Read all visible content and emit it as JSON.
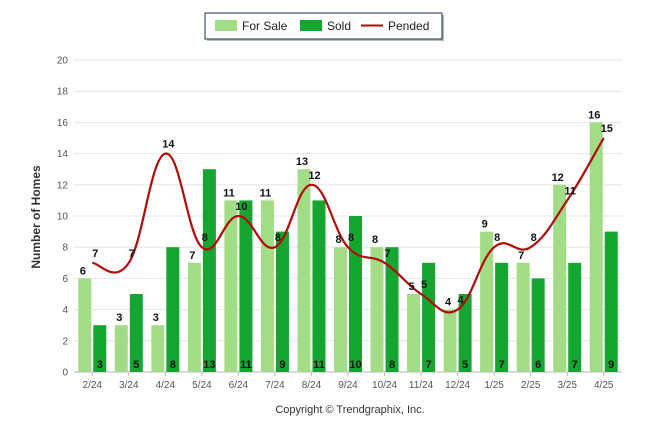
{
  "chart_data": {
    "type": "bar",
    "categories": [
      "2/24",
      "3/24",
      "4/24",
      "5/24",
      "6/24",
      "7/24",
      "8/24",
      "9/24",
      "10/24",
      "11/24",
      "12/24",
      "1/25",
      "2/25",
      "3/25",
      "4/25"
    ],
    "series": [
      {
        "name": "For Sale",
        "type": "bar",
        "color": "#a3dc87",
        "values": [
          6,
          3,
          3,
          7,
          11,
          11,
          13,
          8,
          8,
          5,
          4,
          9,
          7,
          12,
          16
        ]
      },
      {
        "name": "Sold",
        "type": "bar",
        "color": "#14a631",
        "values": [
          3,
          5,
          8,
          13,
          11,
          9,
          11,
          10,
          8,
          7,
          5,
          7,
          6,
          7,
          9
        ]
      },
      {
        "name": "Pended",
        "type": "line",
        "color": "#b20a0a",
        "values": [
          7,
          7,
          14,
          8,
          10,
          8,
          12,
          8,
          7,
          5,
          4,
          8,
          8,
          11,
          15
        ]
      }
    ],
    "title": "",
    "xlabel": "",
    "ylabel": "Number of Homes",
    "ylim": [
      0,
      20
    ],
    "yticks": [
      0,
      2,
      4,
      6,
      8,
      10,
      12,
      14,
      16,
      18,
      20
    ],
    "grid": true,
    "legend_position": "top-center",
    "credit": "Copyright © Trendgraphix, Inc."
  }
}
